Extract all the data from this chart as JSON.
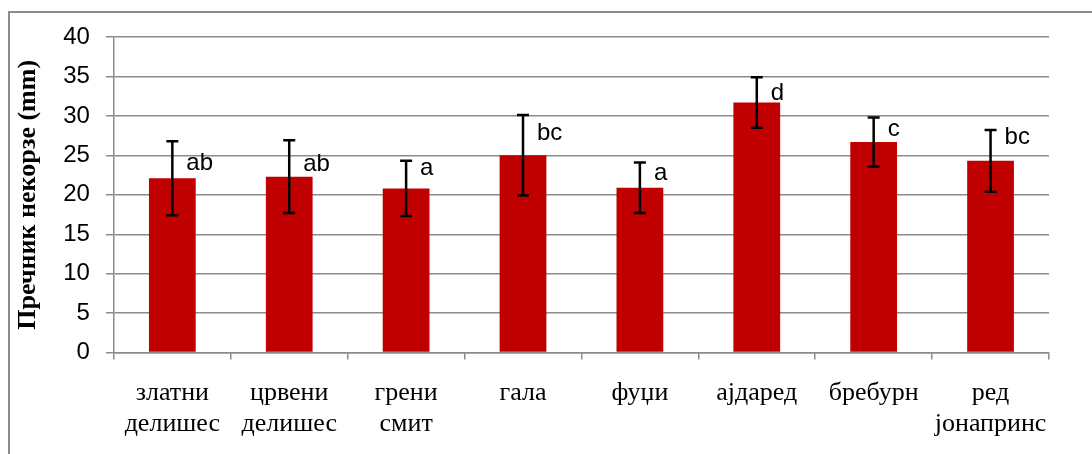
{
  "chart_data": {
    "type": "bar",
    "ylabel": "Пречник некорзе (mm)",
    "categories": [
      "златни делишес",
      "црвени делишес",
      "грени смит",
      "гала",
      "фуџи",
      "ајдаред",
      "бребурн",
      "ред јонапринс"
    ],
    "values": [
      22.1,
      22.3,
      20.8,
      25.0,
      20.9,
      31.7,
      26.7,
      24.3
    ],
    "errors": [
      4.7,
      4.6,
      3.5,
      5.1,
      3.2,
      3.2,
      3.1,
      3.9
    ],
    "color": "#c00000",
    "ylim": [
      0,
      40
    ],
    "yticks": [
      0,
      5,
      10,
      15,
      20,
      25,
      30,
      35,
      40
    ],
    "grid": "y",
    "annotations": [
      {
        "text": "ab",
        "x": "златни делишес",
        "y": 23.1
      },
      {
        "text": "ab",
        "x": "црвени делишес",
        "y": 23.0
      },
      {
        "text": "a",
        "x": "грени смит",
        "y": 22.5
      },
      {
        "text": "bc",
        "x": "гала",
        "y": 26.9
      },
      {
        "text": "a",
        "x": "фуџи",
        "y": 21.9
      },
      {
        "text": "d",
        "x": "ајдаред",
        "y": 32.0
      },
      {
        "text": "c",
        "x": "бребурн",
        "y": 27.5
      },
      {
        "text": "bc",
        "x": "ред јонапринс",
        "y": 26.4
      }
    ]
  }
}
